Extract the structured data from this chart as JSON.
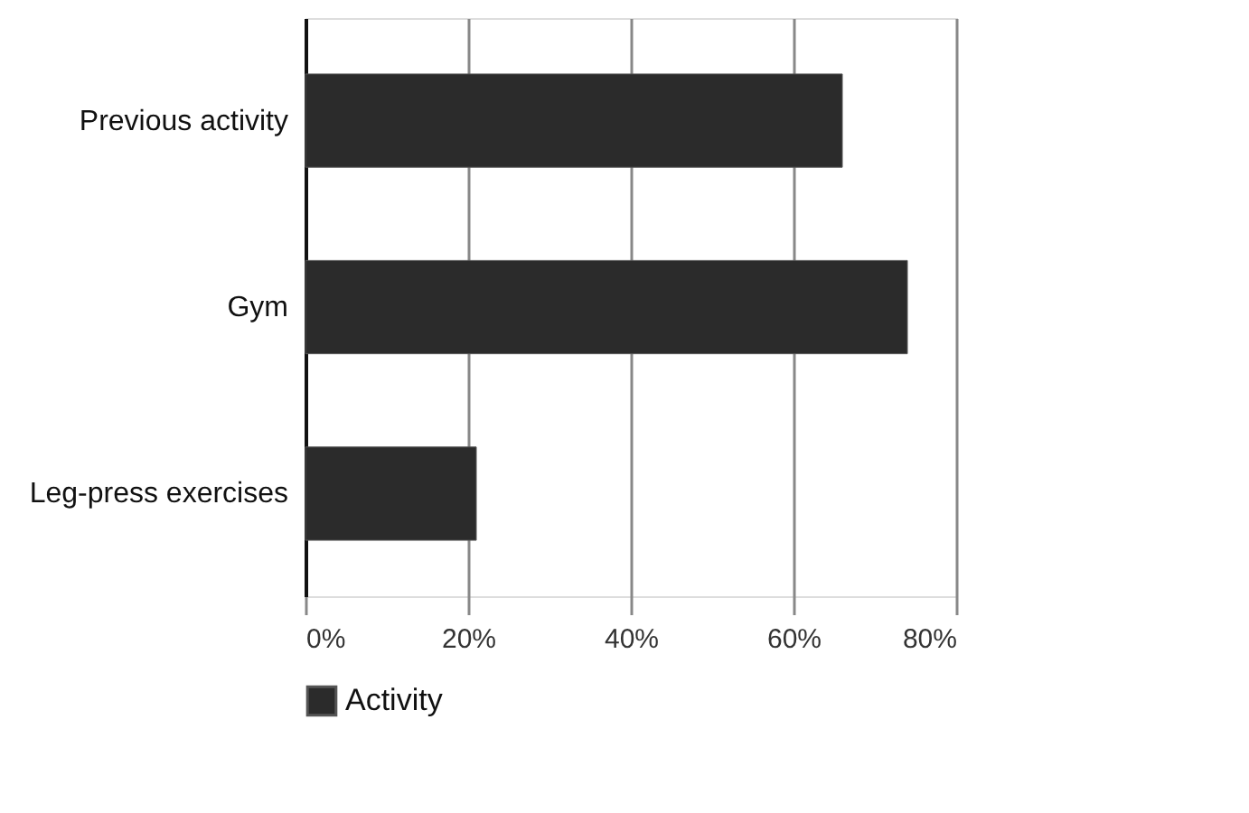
{
  "chart_data": {
    "type": "bar",
    "orientation": "horizontal",
    "categories": [
      "Previous activity",
      "Gym",
      "Leg-press exercises"
    ],
    "series": [
      {
        "name": "Activity",
        "color": "#2b2b2b",
        "values": [
          66,
          74,
          21
        ]
      }
    ],
    "xlim": [
      0,
      80
    ],
    "xticks": [
      {
        "value": 0,
        "label": "0%"
      },
      {
        "value": 20,
        "label": "20%"
      },
      {
        "value": 40,
        "label": "40%"
      },
      {
        "value": 60,
        "label": "60%"
      },
      {
        "value": 80,
        "label": "80%"
      }
    ],
    "grid": "x",
    "legend": "bottom"
  }
}
